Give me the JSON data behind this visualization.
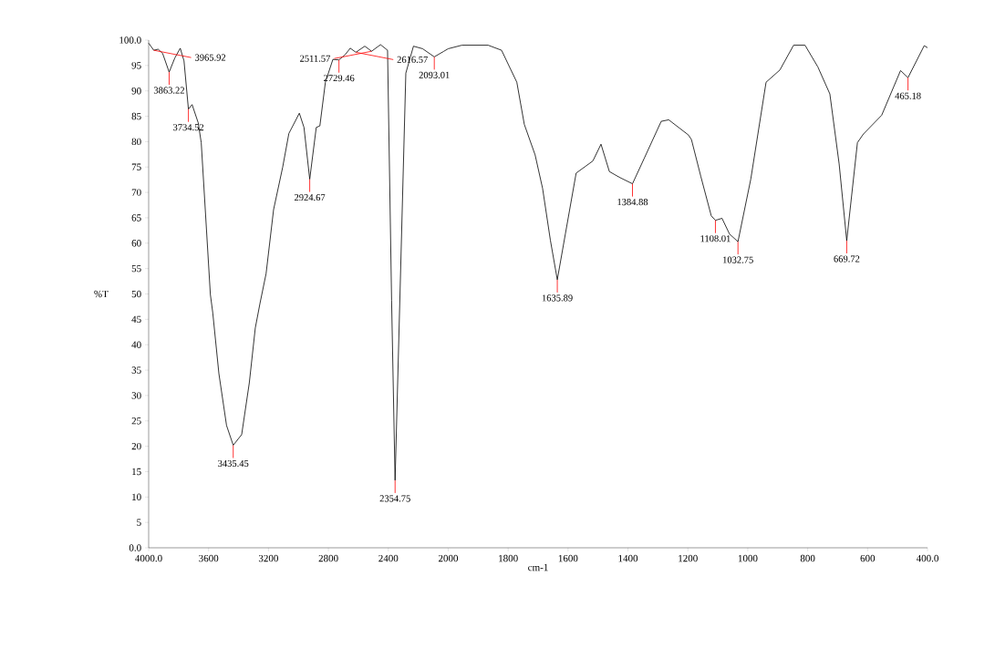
{
  "chart_data": [
    {
      "type": "line",
      "ylabel": "%T",
      "color": "#000000",
      "x": [
        4000,
        3965.92,
        3937,
        3907,
        3863.22,
        3825,
        3789,
        3764,
        3734.52,
        3710,
        3669,
        3649,
        3622,
        3588,
        3572,
        3531,
        3480,
        3435.45,
        3379,
        3328,
        3288,
        3257,
        3216,
        3166,
        3105,
        3064,
        2994,
        2963,
        2924.67,
        2881,
        2857,
        2820,
        2770,
        2729.46,
        2689,
        2654,
        2616.57,
        2557,
        2511.57,
        2452,
        2405,
        2378,
        2354.75,
        2283,
        2232,
        2171,
        2093.01,
        2029,
        2000
      ],
      "values": [
        99.4,
        98.0,
        98.2,
        97.4,
        93.7,
        96.5,
        98.4,
        95.9,
        86.4,
        87.3,
        83.7,
        79.8,
        66.6,
        49.9,
        46.3,
        34.3,
        24.1,
        20.2,
        22.3,
        32.5,
        43.3,
        48.1,
        54.0,
        66.6,
        75.0,
        81.6,
        85.6,
        82.8,
        72.6,
        82.8,
        83.1,
        91.7,
        96.2,
        96.1,
        97.1,
        98.4,
        97.6,
        98.8,
        97.8,
        99.1,
        98.0,
        48.7,
        13.3,
        93.5,
        98.8,
        98.3,
        96.7,
        97.8,
        98.3
      ],
      "xlim": [
        4000,
        2000
      ],
      "xticks": [
        {
          "value": 4000,
          "label": "4000.0"
        },
        3600,
        3200,
        2800,
        2400
      ],
      "ylim": [
        0,
        100
      ],
      "yticks": [
        {
          "value": 0,
          "label": "0.0"
        },
        5,
        10,
        15,
        20,
        25,
        30,
        35,
        40,
        45,
        50,
        55,
        60,
        65,
        70,
        75,
        80,
        85,
        90,
        95,
        {
          "value": 100,
          "label": "100.0"
        }
      ],
      "annotations": [
        {
          "text": "3863.22",
          "x": 3863.22,
          "y": 93.7
        },
        {
          "text": "3965.92",
          "x": 3965.92,
          "y": 98.0
        },
        {
          "text": "3734.52",
          "x": 3734.52,
          "y": 86.4
        },
        {
          "text": "3435.45",
          "x": 3435.45,
          "y": 20.2
        },
        {
          "text": "2924.67",
          "x": 2924.67,
          "y": 72.6
        },
        {
          "text": "2729.46",
          "x": 2729.46,
          "y": 96.1
        },
        {
          "text": "2511.57",
          "x": 2511.57,
          "y": 97.8
        },
        {
          "text": "2616.57",
          "x": 2616.57,
          "y": 97.6
        },
        {
          "text": "2354.75",
          "x": 2354.75,
          "y": 13.3
        },
        {
          "text": "2093.01",
          "x": 2093.01,
          "y": 96.7
        }
      ]
    },
    {
      "type": "line",
      "xlabel": "cm-1",
      "color": "#000000",
      "tick_labels": "x",
      "x": [
        2000,
        1954,
        1867,
        1822,
        1771,
        1746,
        1710,
        1685,
        1659,
        1635.89,
        1609,
        1573,
        1517,
        1490,
        1462,
        1426,
        1384.88,
        1345,
        1289,
        1264,
        1198,
        1188,
        1157,
        1122,
        1108.01,
        1086,
        1061,
        1032.75,
        990,
        939,
        893,
        847,
        809,
        766,
        726,
        695,
        669.72,
        634,
        614,
        553,
        490,
        465.18,
        411,
        400
      ],
      "values": [
        98.3,
        99.0,
        99.0,
        98.0,
        91.7,
        83.4,
        77.4,
        70.8,
        60.6,
        52.8,
        61.8,
        73.8,
        76.2,
        79.5,
        74.1,
        72.9,
        71.7,
        76.8,
        84.0,
        84.3,
        81.3,
        80.4,
        73.2,
        65.4,
        64.5,
        64.9,
        61.8,
        60.3,
        72.6,
        91.7,
        94.1,
        99.0,
        99.0,
        94.7,
        89.4,
        75.6,
        60.5,
        79.8,
        81.5,
        85.2,
        94.0,
        92.6,
        98.9,
        98.5
      ],
      "xlim": [
        2000,
        400
      ],
      "xticks": [
        2000,
        1800,
        1600,
        1400,
        1200,
        1000,
        800,
        600,
        {
          "value": 400,
          "label": "400.0"
        }
      ],
      "ylim": [
        0,
        100
      ],
      "annotations": [
        {
          "text": "1635.89",
          "x": 1635.89,
          "y": 52.8
        },
        {
          "text": "1384.88",
          "x": 1384.88,
          "y": 71.7
        },
        {
          "text": "1108.01",
          "x": 1108.01,
          "y": 64.5
        },
        {
          "text": "1032.75",
          "x": 1032.75,
          "y": 60.3
        },
        {
          "text": "669.72",
          "x": 669.72,
          "y": 60.5
        },
        {
          "text": "465.18",
          "x": 465.18,
          "y": 92.6
        }
      ]
    }
  ]
}
